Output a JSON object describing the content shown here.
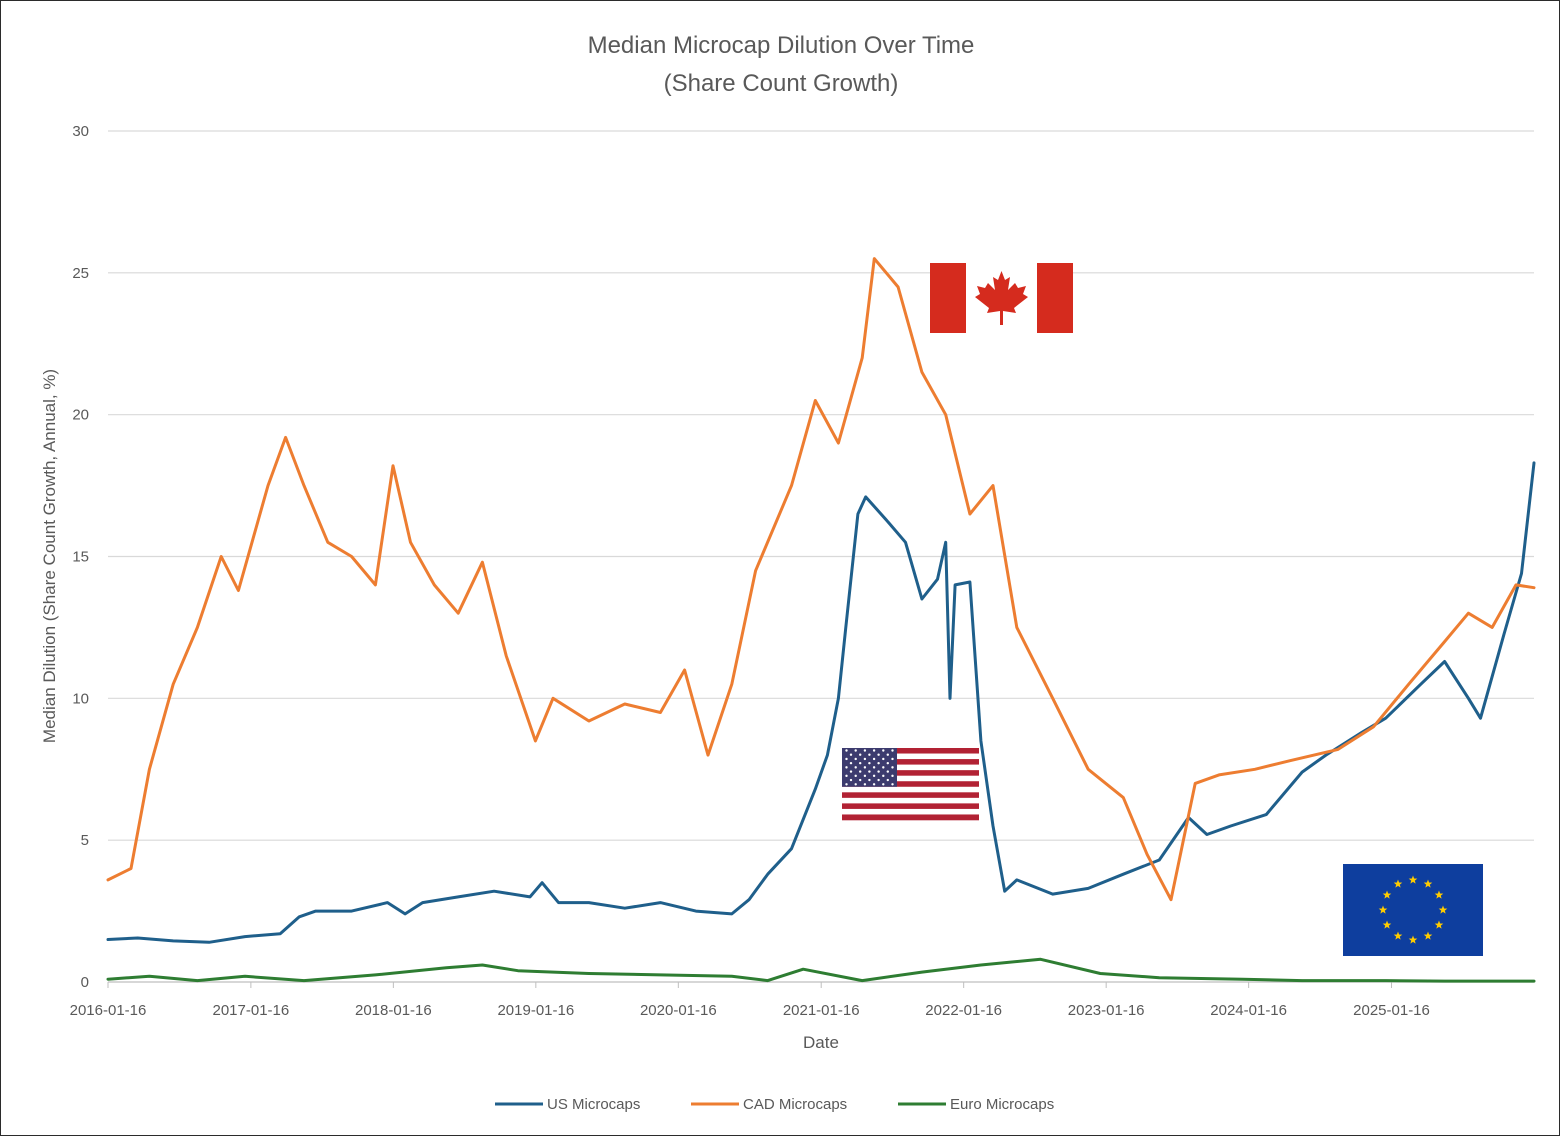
{
  "chart_data": {
    "type": "line",
    "title": "Median Microcap Dilution Over Time",
    "subtitle": "(Share Count Growth)",
    "xlabel": "Date",
    "ylabel": "Median Dilution (Share Count Growth, Annual, %)",
    "ylim": [
      0,
      30
    ],
    "xlim": [
      "2016-01-16",
      "2026-01-16"
    ],
    "y_ticks": [
      0,
      5,
      10,
      15,
      20,
      25,
      30
    ],
    "x_ticks": [
      "2016-01-16",
      "2017-01-16",
      "2018-01-16",
      "2019-01-16",
      "2020-01-16",
      "2021-01-16",
      "2022-01-16",
      "2023-01-16",
      "2024-01-16",
      "2025-01-16"
    ],
    "grid": "horizontal",
    "legend": "bottom",
    "series": [
      {
        "name": "US Microcaps",
        "color": "#1f5f8b",
        "points": [
          [
            "2016-01-16",
            1.5
          ],
          [
            "2016-04-01",
            1.55
          ],
          [
            "2016-07-01",
            1.45
          ],
          [
            "2016-10-01",
            1.4
          ],
          [
            "2017-01-01",
            1.6
          ],
          [
            "2017-04-01",
            1.7
          ],
          [
            "2017-05-20",
            2.3
          ],
          [
            "2017-07-01",
            2.5
          ],
          [
            "2017-10-01",
            2.5
          ],
          [
            "2018-01-01",
            2.8
          ],
          [
            "2018-02-15",
            2.4
          ],
          [
            "2018-04-01",
            2.8
          ],
          [
            "2018-07-01",
            3.0
          ],
          [
            "2018-10-01",
            3.2
          ],
          [
            "2019-01-01",
            3.0
          ],
          [
            "2019-02-01",
            3.5
          ],
          [
            "2019-03-15",
            2.8
          ],
          [
            "2019-06-01",
            2.8
          ],
          [
            "2019-09-01",
            2.6
          ],
          [
            "2019-12-01",
            2.8
          ],
          [
            "2020-03-01",
            2.5
          ],
          [
            "2020-06-01",
            2.4
          ],
          [
            "2020-07-15",
            2.9
          ],
          [
            "2020-09-01",
            3.8
          ],
          [
            "2020-11-01",
            4.7
          ],
          [
            "2021-01-01",
            6.8
          ],
          [
            "2021-02-01",
            8.0
          ],
          [
            "2021-03-01",
            10.0
          ],
          [
            "2021-03-20",
            12.5
          ],
          [
            "2021-04-20",
            16.5
          ],
          [
            "2021-05-10",
            17.1
          ],
          [
            "2021-07-01",
            16.3
          ],
          [
            "2021-08-20",
            15.5
          ],
          [
            "2021-10-01",
            13.5
          ],
          [
            "2021-11-10",
            14.2
          ],
          [
            "2021-12-01",
            15.5
          ],
          [
            "2021-12-12",
            10.0
          ],
          [
            "2021-12-25",
            14.0
          ],
          [
            "2022-02-01",
            14.1
          ],
          [
            "2022-03-01",
            8.5
          ],
          [
            "2022-04-01",
            5.5
          ],
          [
            "2022-05-01",
            3.2
          ],
          [
            "2022-06-01",
            3.6
          ],
          [
            "2022-09-01",
            3.1
          ],
          [
            "2022-12-01",
            3.3
          ],
          [
            "2023-03-01",
            3.8
          ],
          [
            "2023-06-01",
            4.3
          ],
          [
            "2023-08-15",
            5.8
          ],
          [
            "2023-10-01",
            5.2
          ],
          [
            "2023-12-01",
            5.5
          ],
          [
            "2024-03-01",
            5.9
          ],
          [
            "2024-06-01",
            7.4
          ],
          [
            "2024-08-01",
            8.0
          ],
          [
            "2024-11-01",
            8.8
          ],
          [
            "2025-01-01",
            9.3
          ],
          [
            "2025-04-01",
            10.5
          ],
          [
            "2025-06-01",
            11.3
          ],
          [
            "2025-08-01",
            10.0
          ],
          [
            "2025-09-01",
            9.3
          ],
          [
            "2025-11-01",
            12.3
          ],
          [
            "2025-12-15",
            14.4
          ],
          [
            "2026-01-16",
            18.3
          ]
        ]
      },
      {
        "name": "CAD Microcaps",
        "color": "#ed7d31",
        "points": [
          [
            "2016-01-16",
            3.6
          ],
          [
            "2016-03-15",
            4.0
          ],
          [
            "2016-05-01",
            7.5
          ],
          [
            "2016-07-01",
            10.5
          ],
          [
            "2016-09-01",
            12.5
          ],
          [
            "2016-11-01",
            15.0
          ],
          [
            "2016-12-15",
            13.8
          ],
          [
            "2017-03-01",
            17.5
          ],
          [
            "2017-04-15",
            19.2
          ],
          [
            "2017-06-01",
            17.5
          ],
          [
            "2017-08-01",
            15.5
          ],
          [
            "2017-10-01",
            15.0
          ],
          [
            "2017-12-01",
            14.0
          ],
          [
            "2018-01-15",
            18.2
          ],
          [
            "2018-03-01",
            15.5
          ],
          [
            "2018-05-01",
            14.0
          ],
          [
            "2018-07-01",
            13.0
          ],
          [
            "2018-09-01",
            14.8
          ],
          [
            "2018-11-01",
            11.5
          ],
          [
            "2019-01-15",
            8.5
          ],
          [
            "2019-03-01",
            10.0
          ],
          [
            "2019-06-01",
            9.2
          ],
          [
            "2019-09-01",
            9.8
          ],
          [
            "2019-12-01",
            9.5
          ],
          [
            "2020-02-01",
            11.0
          ],
          [
            "2020-04-01",
            8.0
          ],
          [
            "2020-06-01",
            10.5
          ],
          [
            "2020-08-01",
            14.5
          ],
          [
            "2020-11-01",
            17.5
          ],
          [
            "2021-01-01",
            20.5
          ],
          [
            "2021-03-01",
            19.0
          ],
          [
            "2021-05-01",
            22.0
          ],
          [
            "2021-06-01",
            25.5
          ],
          [
            "2021-08-01",
            24.5
          ],
          [
            "2021-10-01",
            21.5
          ],
          [
            "2021-12-01",
            20.0
          ],
          [
            "2022-02-01",
            16.5
          ],
          [
            "2022-04-01",
            17.5
          ],
          [
            "2022-06-01",
            12.5
          ],
          [
            "2022-09-01",
            10.0
          ],
          [
            "2022-12-01",
            7.5
          ],
          [
            "2023-03-01",
            6.5
          ],
          [
            "2023-05-01",
            4.5
          ],
          [
            "2023-07-01",
            2.9
          ],
          [
            "2023-09-01",
            7.0
          ],
          [
            "2023-11-01",
            7.3
          ],
          [
            "2024-02-01",
            7.5
          ],
          [
            "2024-05-01",
            7.8
          ],
          [
            "2024-09-01",
            8.2
          ],
          [
            "2024-12-01",
            9.0
          ],
          [
            "2025-03-01",
            10.5
          ],
          [
            "2025-06-01",
            12.0
          ],
          [
            "2025-08-01",
            13.0
          ],
          [
            "2025-10-01",
            12.5
          ],
          [
            "2025-12-01",
            14.0
          ],
          [
            "2026-01-16",
            13.9
          ]
        ]
      },
      {
        "name": "Euro Microcaps",
        "color": "#2e7d32",
        "points": [
          [
            "2016-01-16",
            0.1
          ],
          [
            "2016-05-01",
            0.2
          ],
          [
            "2016-09-01",
            0.05
          ],
          [
            "2017-01-01",
            0.2
          ],
          [
            "2017-06-01",
            0.05
          ],
          [
            "2017-12-01",
            0.25
          ],
          [
            "2018-06-01",
            0.5
          ],
          [
            "2018-09-01",
            0.6
          ],
          [
            "2018-12-01",
            0.4
          ],
          [
            "2019-06-01",
            0.3
          ],
          [
            "2019-12-01",
            0.25
          ],
          [
            "2020-06-01",
            0.2
          ],
          [
            "2020-09-01",
            0.05
          ],
          [
            "2020-12-01",
            0.45
          ],
          [
            "2021-05-01",
            0.05
          ],
          [
            "2021-10-01",
            0.35
          ],
          [
            "2022-03-01",
            0.6
          ],
          [
            "2022-08-01",
            0.8
          ],
          [
            "2023-01-01",
            0.3
          ],
          [
            "2023-06-01",
            0.15
          ],
          [
            "2024-01-01",
            0.1
          ],
          [
            "2024-06-01",
            0.05
          ],
          [
            "2025-01-01",
            0.05
          ],
          [
            "2025-06-01",
            0.03
          ],
          [
            "2026-01-16",
            0.03
          ]
        ]
      }
    ]
  },
  "flags": [
    {
      "name": "canada-flag"
    },
    {
      "name": "usa-flag"
    },
    {
      "name": "eu-flag"
    }
  ]
}
